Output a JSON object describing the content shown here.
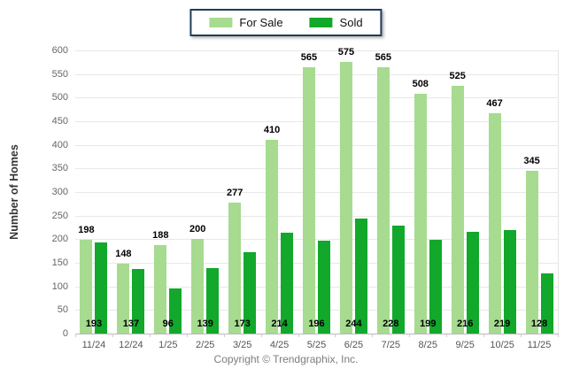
{
  "footer": {
    "copyright": "Copyright © Trendgraphix, Inc."
  },
  "chart_data": {
    "type": "bar",
    "title": "",
    "xlabel": "",
    "ylabel": "Number of Homes",
    "ylim": [
      0,
      600
    ],
    "ytick_step": 50,
    "grid": true,
    "legend_position": "top-center",
    "categories": [
      "11/24",
      "12/24",
      "1/25",
      "2/25",
      "3/25",
      "4/25",
      "5/25",
      "6/25",
      "7/25",
      "8/25",
      "9/25",
      "10/25",
      "11/25"
    ],
    "series": [
      {
        "name": "For Sale",
        "color": "#a6db90",
        "values": [
          198,
          148,
          188,
          200,
          277,
          410,
          565,
          575,
          565,
          508,
          525,
          467,
          345
        ]
      },
      {
        "name": "Sold",
        "color": "#12a82b",
        "values": [
          193,
          137,
          96,
          139,
          173,
          214,
          196,
          244,
          228,
          199,
          216,
          219,
          128
        ]
      }
    ],
    "colors": {
      "legend_border": "#1f3c5c",
      "value_label": "#000000"
    }
  }
}
